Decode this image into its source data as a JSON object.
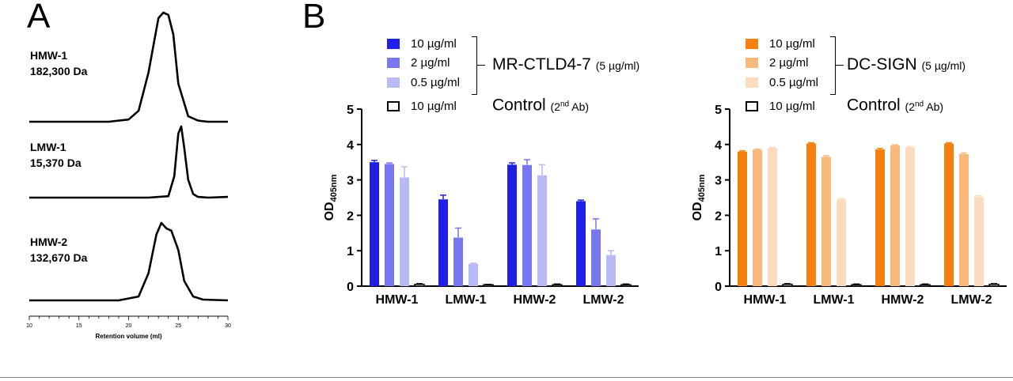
{
  "panel_a": {
    "letter": "A",
    "labels": [
      {
        "name": "HMW-1",
        "mw": "182,300 Da"
      },
      {
        "name": "LMW-1",
        "mw": "15,370 Da"
      },
      {
        "name": "HMW-2",
        "mw": "132,670 Da"
      }
    ]
  },
  "panel_b": {
    "letter": "B",
    "left_legend": {
      "items": [
        "10 µg/ml",
        "2 µg/ml",
        "0.5 µg/ml",
        "10 µg/ml"
      ],
      "group_main": "MR-CTLD4-7",
      "group_sub": "(5 µg/ml)",
      "control_main": "Control",
      "control_open": "(2",
      "control_sup": "nd",
      "control_close": " Ab)"
    },
    "right_legend": {
      "items": [
        "10 µg/ml",
        "2 µg/ml",
        "0.5 µg/ml",
        "10 µg/ml"
      ],
      "group_main": "DC-SIGN",
      "group_sub": "(5 µg/ml)",
      "control_main": "Control",
      "control_open": "(2",
      "control_sup": "nd",
      "control_close": " Ab)"
    }
  },
  "colors": {
    "blue": [
      "#1f1fe6",
      "#7777f0",
      "#b9b9f6"
    ],
    "orange": [
      "#f6800f",
      "#f9b97c",
      "#fcdcbe"
    ],
    "control": "#ffffff"
  },
  "chart_data": [
    {
      "type": "line",
      "panel": "A",
      "xlabel": "Retention volume (ml)",
      "xlim": [
        10,
        30
      ],
      "xticks": [
        10,
        15,
        20,
        25,
        30
      ],
      "series": [
        {
          "name": "HMW-1",
          "x": [
            10,
            18,
            20,
            21,
            22,
            23,
            23.5,
            24,
            24.5,
            25,
            26,
            27,
            28,
            30
          ],
          "y": [
            0,
            0,
            0.02,
            0.1,
            0.45,
            0.95,
            1.0,
            0.98,
            0.8,
            0.35,
            0.05,
            0.01,
            0,
            0
          ]
        },
        {
          "name": "LMW-1",
          "x": [
            10,
            22,
            24,
            24.6,
            25,
            25.3,
            25.6,
            26,
            26.5,
            27,
            28,
            30
          ],
          "y": [
            0,
            0,
            0.02,
            0.3,
            0.9,
            1.0,
            0.7,
            0.25,
            0.05,
            0.01,
            0,
            0.01
          ]
        },
        {
          "name": "HMW-2",
          "x": [
            10,
            19,
            21,
            22,
            22.8,
            23.3,
            23.8,
            24.3,
            25,
            25.6,
            26.5,
            27.5,
            30
          ],
          "y": [
            0,
            0,
            0.05,
            0.35,
            0.85,
            1.0,
            0.93,
            0.9,
            0.65,
            0.25,
            0.05,
            0.01,
            0
          ]
        }
      ]
    },
    {
      "type": "bar",
      "panel": "B-left",
      "categories": [
        "HMW-1",
        "LMW-1",
        "HMW-2",
        "LMW-2"
      ],
      "ylim": [
        0,
        5
      ],
      "yticks": [
        0,
        1,
        2,
        3,
        4,
        5
      ],
      "ylabel_main": "OD",
      "ylabel_sub": "405nm",
      "series": [
        {
          "name": "10 µg/ml",
          "values": [
            3.5,
            2.45,
            3.43,
            2.4
          ],
          "errors": [
            0.05,
            0.12,
            0.05,
            0.03
          ]
        },
        {
          "name": "2 µg/ml",
          "values": [
            3.45,
            1.37,
            3.42,
            1.6
          ],
          "errors": [
            0.03,
            0.27,
            0.15,
            0.3
          ]
        },
        {
          "name": "0.5 µg/ml",
          "values": [
            3.07,
            0.63,
            3.13,
            0.88
          ],
          "errors": [
            0.3,
            0.02,
            0.3,
            0.12
          ]
        },
        {
          "name": "10 µg/ml",
          "values": [
            0.05,
            0.04,
            0.04,
            0.04
          ],
          "errors": [
            0.02,
            0.01,
            0.02,
            0.02
          ]
        }
      ]
    },
    {
      "type": "bar",
      "panel": "B-right",
      "categories": [
        "HMW-1",
        "LMW-1",
        "HMW-2",
        "LMW-2"
      ],
      "ylim": [
        0,
        5
      ],
      "yticks": [
        0,
        1,
        2,
        3,
        4,
        5
      ],
      "ylabel_main": "OD",
      "ylabel_sub": "405nm",
      "series": [
        {
          "name": "10 µg/ml",
          "values": [
            3.8,
            4.03,
            3.86,
            4.03
          ],
          "errors": [
            0.02,
            0.02,
            0.03,
            0.02
          ]
        },
        {
          "name": "2 µg/ml",
          "values": [
            3.85,
            3.65,
            3.97,
            3.73
          ],
          "errors": [
            0.02,
            0.03,
            0.02,
            0.03
          ]
        },
        {
          "name": "0.5 µg/ml",
          "values": [
            3.9,
            2.45,
            3.92,
            2.52
          ],
          "errors": [
            0.02,
            0.02,
            0.02,
            0.03
          ]
        },
        {
          "name": "10 µg/ml",
          "values": [
            0.05,
            0.04,
            0.04,
            0.05
          ],
          "errors": [
            0.02,
            0.02,
            0.02,
            0.02
          ]
        }
      ]
    }
  ]
}
